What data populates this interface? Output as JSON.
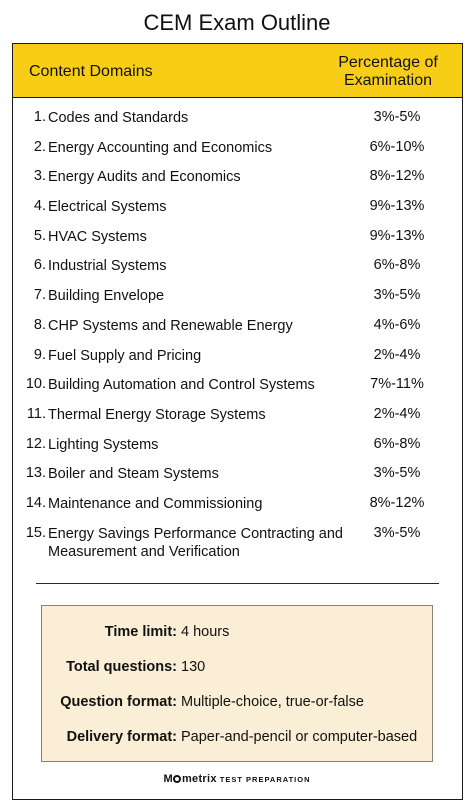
{
  "title": "CEM Exam Outline",
  "table": {
    "header_domain": "Content Domains",
    "header_percentage": "Percentage of Examination",
    "rows": [
      {
        "num": "1.",
        "name": "Codes and Standards",
        "pct": "3%-5%"
      },
      {
        "num": "2.",
        "name": "Energy Accounting and Economics",
        "pct": "6%-10%"
      },
      {
        "num": "3.",
        "name": "Energy Audits and Economics",
        "pct": "8%-12%"
      },
      {
        "num": "4.",
        "name": "Electrical Systems",
        "pct": "9%-13%"
      },
      {
        "num": "5.",
        "name": "HVAC Systems",
        "pct": "9%-13%"
      },
      {
        "num": "6.",
        "name": "Industrial Systems",
        "pct": "6%-8%"
      },
      {
        "num": "7.",
        "name": "Building Envelope",
        "pct": "3%-5%"
      },
      {
        "num": "8.",
        "name": "CHP Systems and Renewable Energy",
        "pct": "4%-6%"
      },
      {
        "num": "9.",
        "name": "Fuel Supply and Pricing",
        "pct": "2%-4%"
      },
      {
        "num": "10.",
        "name": "Building Automation and Control Systems",
        "pct": "7%-11%"
      },
      {
        "num": "11.",
        "name": "Thermal Energy Storage Systems",
        "pct": "2%-4%"
      },
      {
        "num": "12.",
        "name": "Lighting Systems",
        "pct": "6%-8%"
      },
      {
        "num": "13.",
        "name": "Boiler and Steam Systems",
        "pct": "3%-5%"
      },
      {
        "num": "14.",
        "name": "Maintenance and Commissioning",
        "pct": "8%-12%"
      },
      {
        "num": "15.",
        "name": "Energy Savings Performance Contracting and Measurement and Verification",
        "pct": "3%-5%"
      }
    ]
  },
  "info": {
    "time_limit_label": "Time limit:",
    "time_limit_value": "4 hours",
    "total_questions_label": "Total questions:",
    "total_questions_value": "130",
    "question_format_label": "Question format:",
    "question_format_value": "Multiple-choice, true-or-false",
    "delivery_format_label": "Delivery format:",
    "delivery_format_value": "Paper-and-pencil or computer-based"
  },
  "brand": {
    "name_prefix": "M",
    "name_suffix": "metrix",
    "tagline": "TEST PREPARATION"
  },
  "colors": {
    "header_bg": "#f8cd15",
    "info_bg": "#faefd6"
  }
}
